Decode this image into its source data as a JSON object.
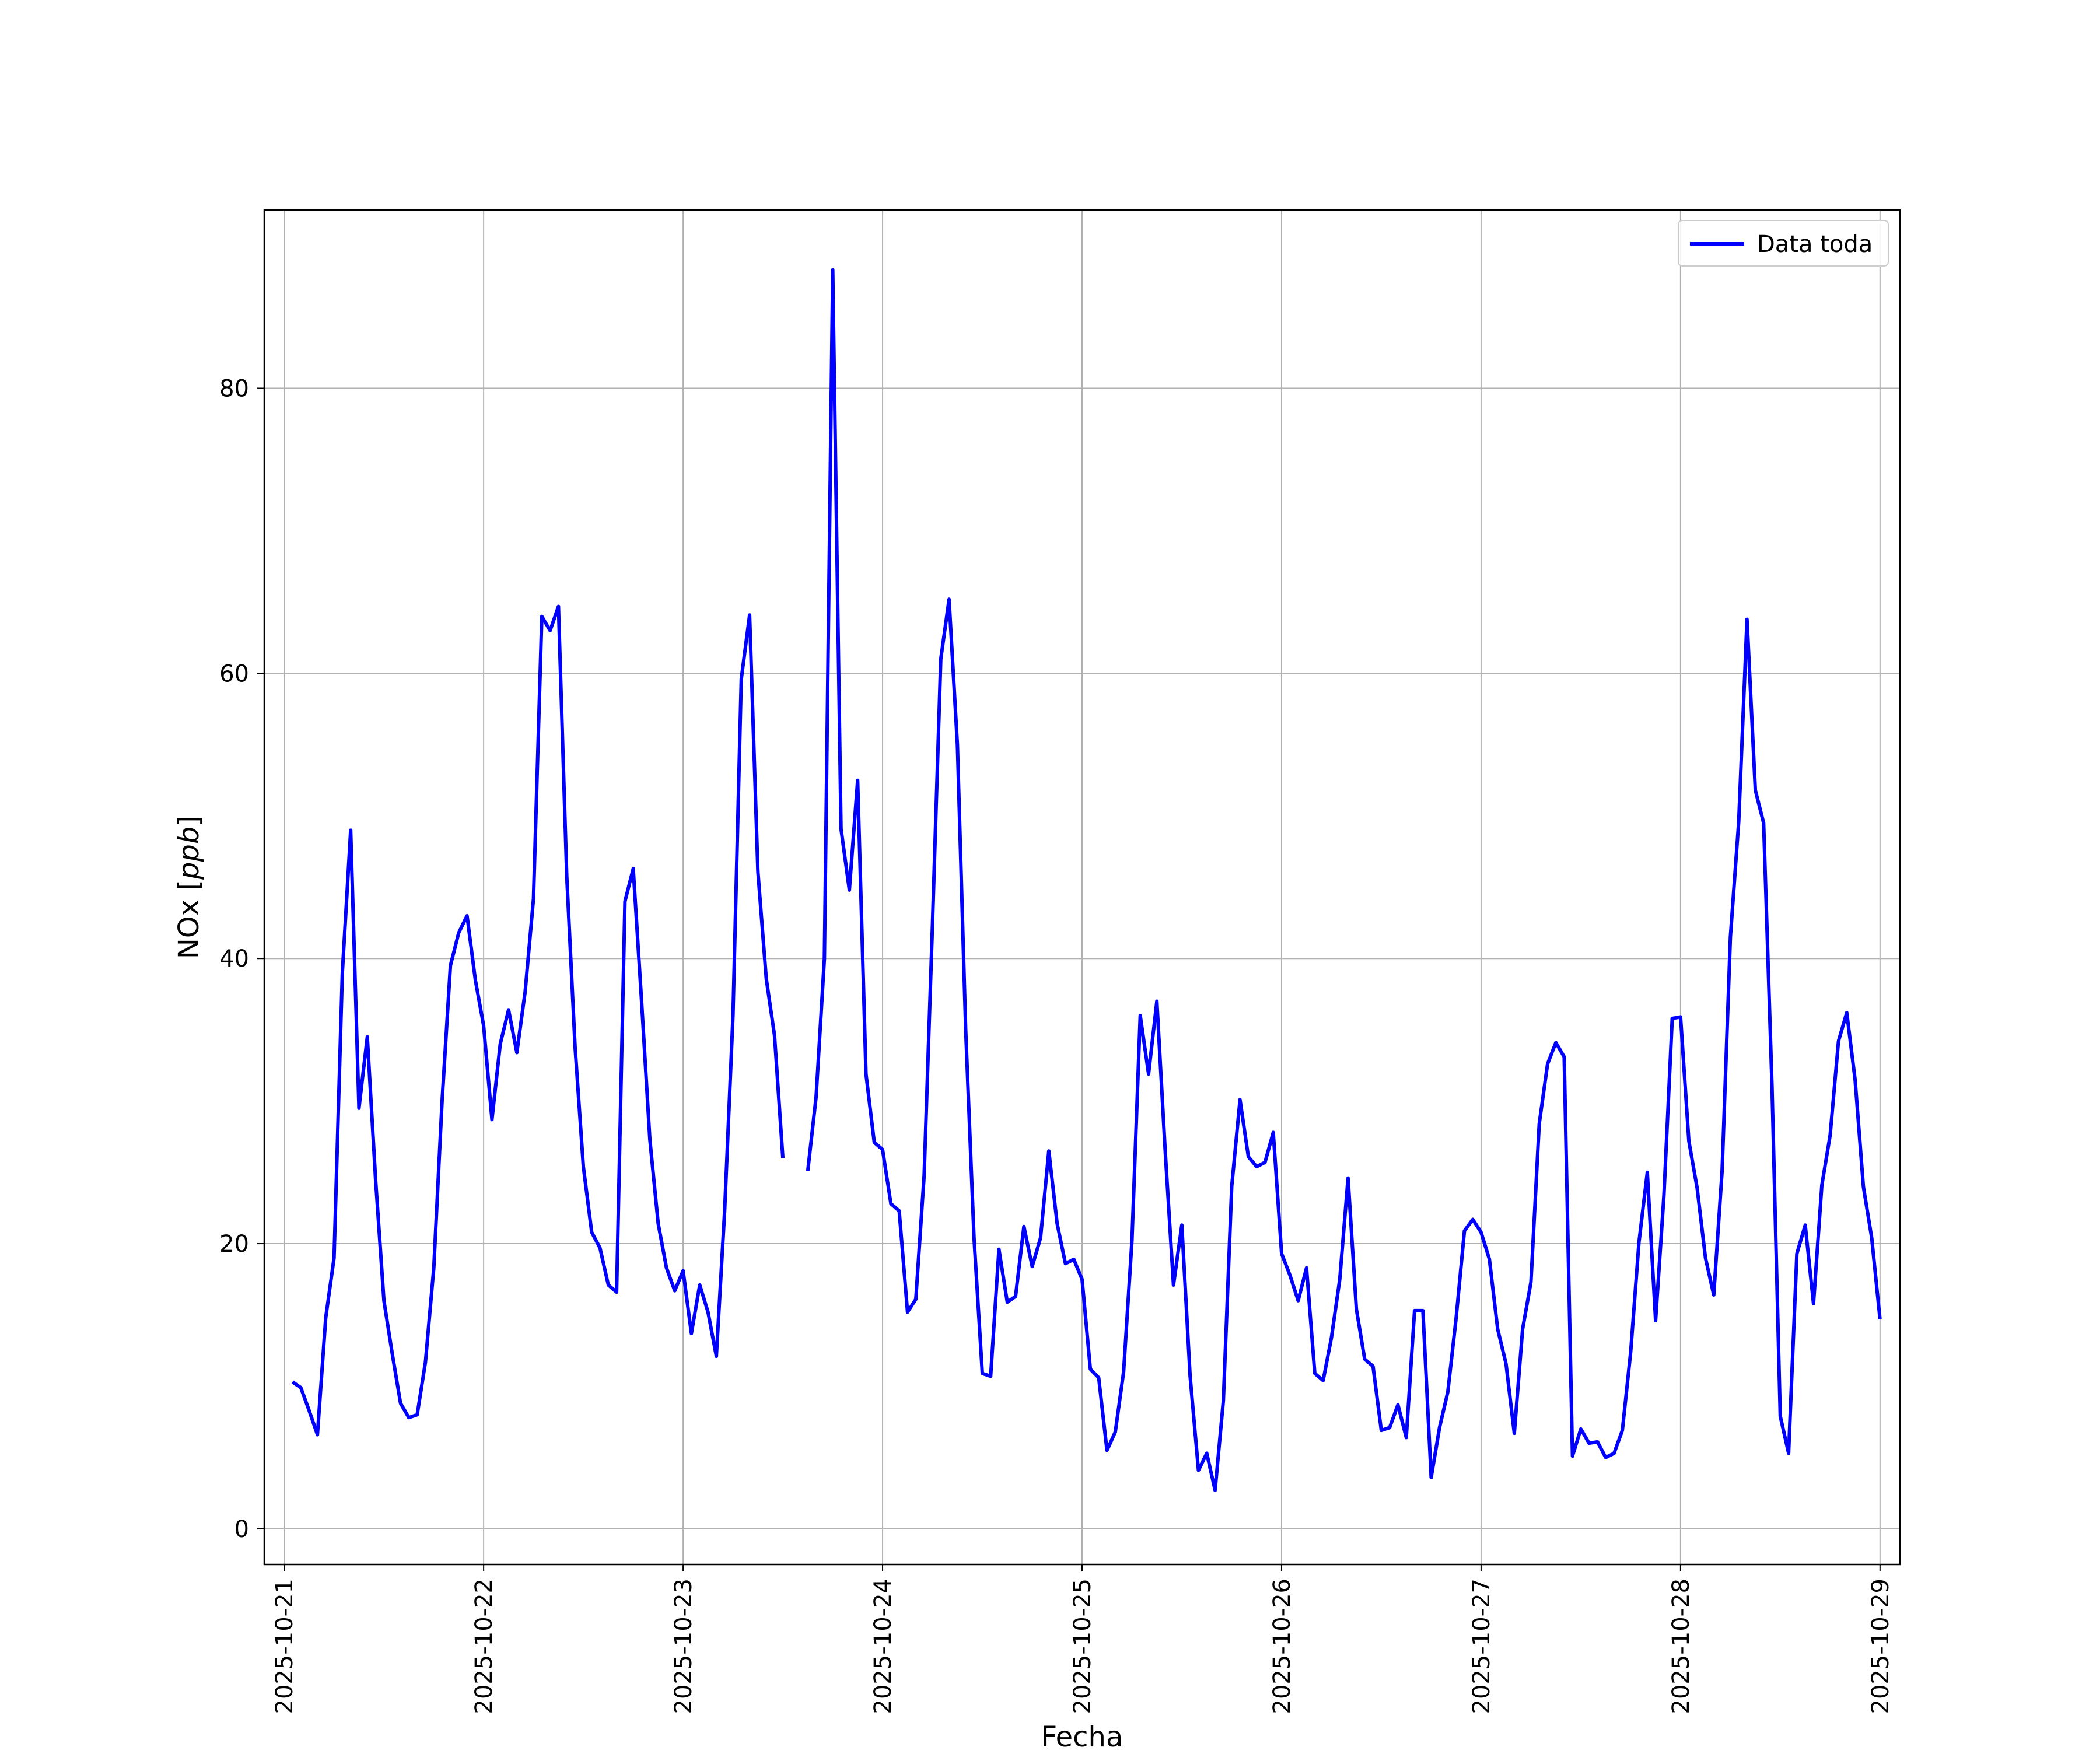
{
  "chart_data": {
    "type": "line",
    "xlabel": "Fecha",
    "ylabel": "NOx [ppb]",
    "ylabel_main": "NOx [",
    "ylabel_unit": "ppb",
    "ylabel_close": "]",
    "x_range": [
      "2025-10-20T21:36",
      "2025-10-29T02:24"
    ],
    "ylim": [
      -2.5,
      92.5
    ],
    "y_ticks": [
      0,
      20,
      40,
      60,
      80
    ],
    "x_ticks": [
      "2025-10-21",
      "2025-10-22",
      "2025-10-23",
      "2025-10-24",
      "2025-10-25",
      "2025-10-26",
      "2025-10-27",
      "2025-10-28",
      "2025-10-29"
    ],
    "grid": true,
    "legend": "top-right",
    "series": [
      {
        "name": "Data toda",
        "color": "#0000ff",
        "points": [
          [
            "2025-10-21T01:00",
            10.3
          ],
          [
            "2025-10-21T02:00",
            9.9
          ],
          [
            "2025-10-21T03:00",
            8.3
          ],
          [
            "2025-10-21T04:00",
            6.6
          ],
          [
            "2025-10-21T05:00",
            14.8
          ],
          [
            "2025-10-21T06:00",
            19.0
          ],
          [
            "2025-10-21T07:00",
            39.0
          ],
          [
            "2025-10-21T08:00",
            49.0
          ],
          [
            "2025-10-21T09:00",
            29.5
          ],
          [
            "2025-10-21T10:00",
            34.5
          ],
          [
            "2025-10-21T11:00",
            24.5
          ],
          [
            "2025-10-21T12:00",
            16.0
          ],
          [
            "2025-10-21T13:00",
            12.3
          ],
          [
            "2025-10-21T14:00",
            8.8
          ],
          [
            "2025-10-21T15:00",
            7.8
          ],
          [
            "2025-10-21T16:00",
            8.0
          ],
          [
            "2025-10-21T17:00",
            11.7
          ],
          [
            "2025-10-21T18:00",
            18.3
          ],
          [
            "2025-10-21T19:00",
            30.0
          ],
          [
            "2025-10-21T20:00",
            39.5
          ],
          [
            "2025-10-21T21:00",
            41.8
          ],
          [
            "2025-10-21T22:00",
            43.0
          ],
          [
            "2025-10-21T23:00",
            38.5
          ],
          [
            "2025-10-22T00:00",
            35.3
          ],
          [
            "2025-10-22T01:00",
            28.7
          ],
          [
            "2025-10-22T02:00",
            34.0
          ],
          [
            "2025-10-22T03:00",
            36.4
          ],
          [
            "2025-10-22T04:00",
            33.4
          ],
          [
            "2025-10-22T05:00",
            37.7
          ],
          [
            "2025-10-22T06:00",
            44.2
          ],
          [
            "2025-10-22T07:00",
            64.0
          ],
          [
            "2025-10-22T08:00",
            63.0
          ],
          [
            "2025-10-22T09:00",
            64.7
          ],
          [
            "2025-10-22T10:00",
            45.8
          ],
          [
            "2025-10-22T11:00",
            33.8
          ],
          [
            "2025-10-22T12:00",
            25.4
          ],
          [
            "2025-10-22T13:00",
            20.8
          ],
          [
            "2025-10-22T14:00",
            19.7
          ],
          [
            "2025-10-22T15:00",
            17.1
          ],
          [
            "2025-10-22T16:00",
            16.6
          ],
          [
            "2025-10-22T17:00",
            44.0
          ],
          [
            "2025-10-22T18:00",
            46.3
          ],
          [
            "2025-10-22T19:00",
            37.0
          ],
          [
            "2025-10-22T20:00",
            27.3
          ],
          [
            "2025-10-22T21:00",
            21.4
          ],
          [
            "2025-10-22T22:00",
            18.3
          ],
          [
            "2025-10-22T23:00",
            16.7
          ],
          [
            "2025-10-23T00:00",
            18.1
          ],
          [
            "2025-10-23T01:00",
            13.7
          ],
          [
            "2025-10-23T02:00",
            17.1
          ],
          [
            "2025-10-23T03:00",
            15.2
          ],
          [
            "2025-10-23T04:00",
            12.1
          ],
          [
            "2025-10-23T05:00",
            22.3
          ],
          [
            "2025-10-23T06:00",
            36.0
          ],
          [
            "2025-10-23T07:00",
            59.6
          ],
          [
            "2025-10-23T08:00",
            64.1
          ],
          [
            "2025-10-23T09:00",
            46.1
          ],
          [
            "2025-10-23T10:00",
            38.6
          ],
          [
            "2025-10-23T11:00",
            34.6
          ],
          [
            "2025-10-23T12:00",
            26.0
          ],
          [
            "2025-10-23T13:00",
            null
          ],
          [
            "2025-10-23T14:00",
            null
          ],
          [
            "2025-10-23T15:00",
            25.1
          ],
          [
            "2025-10-23T16:00",
            30.3
          ],
          [
            "2025-10-23T17:00",
            40.0
          ],
          [
            "2025-10-23T18:00",
            88.3
          ],
          [
            "2025-10-23T19:00",
            49.1
          ],
          [
            "2025-10-23T20:00",
            44.8
          ],
          [
            "2025-10-23T21:00",
            52.5
          ],
          [
            "2025-10-23T22:00",
            31.9
          ],
          [
            "2025-10-23T23:00",
            27.1
          ],
          [
            "2025-10-24T00:00",
            26.6
          ],
          [
            "2025-10-24T01:00",
            22.8
          ],
          [
            "2025-10-24T02:00",
            22.3
          ],
          [
            "2025-10-24T03:00",
            15.2
          ],
          [
            "2025-10-24T04:00",
            16.1
          ],
          [
            "2025-10-24T05:00",
            24.8
          ],
          [
            "2025-10-24T06:00",
            42.3
          ],
          [
            "2025-10-24T07:00",
            61.0
          ],
          [
            "2025-10-24T08:00",
            65.2
          ],
          [
            "2025-10-24T09:00",
            55.0
          ],
          [
            "2025-10-24T10:00",
            35.0
          ],
          [
            "2025-10-24T11:00",
            20.4
          ],
          [
            "2025-10-24T12:00",
            10.9
          ],
          [
            "2025-10-24T13:00",
            10.7
          ],
          [
            "2025-10-24T14:00",
            19.6
          ],
          [
            "2025-10-24T15:00",
            15.9
          ],
          [
            "2025-10-24T16:00",
            16.3
          ],
          [
            "2025-10-24T17:00",
            21.2
          ],
          [
            "2025-10-24T18:00",
            18.4
          ],
          [
            "2025-10-24T19:00",
            20.4
          ],
          [
            "2025-10-24T20:00",
            26.5
          ],
          [
            "2025-10-24T21:00",
            21.4
          ],
          [
            "2025-10-24T22:00",
            18.6
          ],
          [
            "2025-10-24T23:00",
            18.9
          ],
          [
            "2025-10-25T00:00",
            17.5
          ],
          [
            "2025-10-25T01:00",
            11.2
          ],
          [
            "2025-10-25T02:00",
            10.6
          ],
          [
            "2025-10-25T03:00",
            5.5
          ],
          [
            "2025-10-25T04:00",
            6.8
          ],
          [
            "2025-10-25T05:00",
            11.0
          ],
          [
            "2025-10-25T06:00",
            20.2
          ],
          [
            "2025-10-25T07:00",
            36.0
          ],
          [
            "2025-10-25T08:00",
            31.9
          ],
          [
            "2025-10-25T09:00",
            37.0
          ],
          [
            "2025-10-25T10:00",
            26.5
          ],
          [
            "2025-10-25T11:00",
            17.1
          ],
          [
            "2025-10-25T12:00",
            21.3
          ],
          [
            "2025-10-25T13:00",
            10.7
          ],
          [
            "2025-10-25T14:00",
            4.1
          ],
          [
            "2025-10-25T15:00",
            5.3
          ],
          [
            "2025-10-25T16:00",
            2.7
          ],
          [
            "2025-10-25T17:00",
            9.0
          ],
          [
            "2025-10-25T18:00",
            24.0
          ],
          [
            "2025-10-25T19:00",
            30.1
          ],
          [
            "2025-10-25T20:00",
            26.1
          ],
          [
            "2025-10-25T21:00",
            25.4
          ],
          [
            "2025-10-25T22:00",
            25.7
          ],
          [
            "2025-10-25T23:00",
            27.8
          ],
          [
            "2025-10-26T00:00",
            19.3
          ],
          [
            "2025-10-26T01:00",
            17.8
          ],
          [
            "2025-10-26T02:00",
            16.0
          ],
          [
            "2025-10-26T03:00",
            18.3
          ],
          [
            "2025-10-26T04:00",
            10.9
          ],
          [
            "2025-10-26T05:00",
            10.4
          ],
          [
            "2025-10-26T06:00",
            13.4
          ],
          [
            "2025-10-26T07:00",
            17.5
          ],
          [
            "2025-10-26T08:00",
            24.6
          ],
          [
            "2025-10-26T09:00",
            15.4
          ],
          [
            "2025-10-26T10:00",
            11.9
          ],
          [
            "2025-10-26T11:00",
            11.4
          ],
          [
            "2025-10-26T12:00",
            6.9
          ],
          [
            "2025-10-26T13:00",
            7.1
          ],
          [
            "2025-10-26T14:00",
            8.7
          ],
          [
            "2025-10-26T15:00",
            6.4
          ],
          [
            "2025-10-26T16:00",
            15.3
          ],
          [
            "2025-10-26T17:00",
            15.3
          ],
          [
            "2025-10-26T18:00",
            3.6
          ],
          [
            "2025-10-26T19:00",
            7.1
          ],
          [
            "2025-10-26T20:00",
            9.6
          ],
          [
            "2025-10-26T21:00",
            14.8
          ],
          [
            "2025-10-26T22:00",
            20.9
          ],
          [
            "2025-10-26T23:00",
            21.7
          ],
          [
            "2025-10-27T00:00",
            20.8
          ],
          [
            "2025-10-27T01:00",
            18.9
          ],
          [
            "2025-10-27T02:00",
            14.0
          ],
          [
            "2025-10-27T03:00",
            11.6
          ],
          [
            "2025-10-27T04:00",
            6.7
          ],
          [
            "2025-10-27T05:00",
            14.0
          ],
          [
            "2025-10-27T06:00",
            17.3
          ],
          [
            "2025-10-27T07:00",
            28.4
          ],
          [
            "2025-10-27T08:00",
            32.6
          ],
          [
            "2025-10-27T09:00",
            34.1
          ],
          [
            "2025-10-27T10:00",
            33.1
          ],
          [
            "2025-10-27T11:00",
            5.1
          ],
          [
            "2025-10-27T12:00",
            7.0
          ],
          [
            "2025-10-27T13:00",
            6.0
          ],
          [
            "2025-10-27T14:00",
            6.1
          ],
          [
            "2025-10-27T15:00",
            5.0
          ],
          [
            "2025-10-27T16:00",
            5.3
          ],
          [
            "2025-10-27T17:00",
            6.9
          ],
          [
            "2025-10-27T18:00",
            12.4
          ],
          [
            "2025-10-27T19:00",
            20.1
          ],
          [
            "2025-10-27T20:00",
            25.0
          ],
          [
            "2025-10-27T21:00",
            14.6
          ],
          [
            "2025-10-27T22:00",
            23.4
          ],
          [
            "2025-10-27T23:00",
            35.8
          ],
          [
            "2025-10-28T00:00",
            35.9
          ],
          [
            "2025-10-28T01:00",
            27.2
          ],
          [
            "2025-10-28T02:00",
            23.9
          ],
          [
            "2025-10-28T03:00",
            19.0
          ],
          [
            "2025-10-28T04:00",
            16.4
          ],
          [
            "2025-10-28T05:00",
            25.1
          ],
          [
            "2025-10-28T06:00",
            41.5
          ],
          [
            "2025-10-28T07:00",
            49.6
          ],
          [
            "2025-10-28T08:00",
            63.8
          ],
          [
            "2025-10-28T09:00",
            51.8
          ],
          [
            "2025-10-28T10:00",
            49.5
          ],
          [
            "2025-10-28T11:00",
            31.1
          ],
          [
            "2025-10-28T12:00",
            7.9
          ],
          [
            "2025-10-28T13:00",
            5.3
          ],
          [
            "2025-10-28T14:00",
            19.3
          ],
          [
            "2025-10-28T15:00",
            21.3
          ],
          [
            "2025-10-28T16:00",
            15.8
          ],
          [
            "2025-10-28T17:00",
            24.1
          ],
          [
            "2025-10-28T18:00",
            27.6
          ],
          [
            "2025-10-28T19:00",
            34.2
          ],
          [
            "2025-10-28T20:00",
            36.2
          ],
          [
            "2025-10-28T21:00",
            31.5
          ],
          [
            "2025-10-28T22:00",
            24.0
          ],
          [
            "2025-10-28T23:00",
            20.4
          ],
          [
            "2025-10-29T00:00",
            14.7
          ]
        ]
      }
    ]
  }
}
